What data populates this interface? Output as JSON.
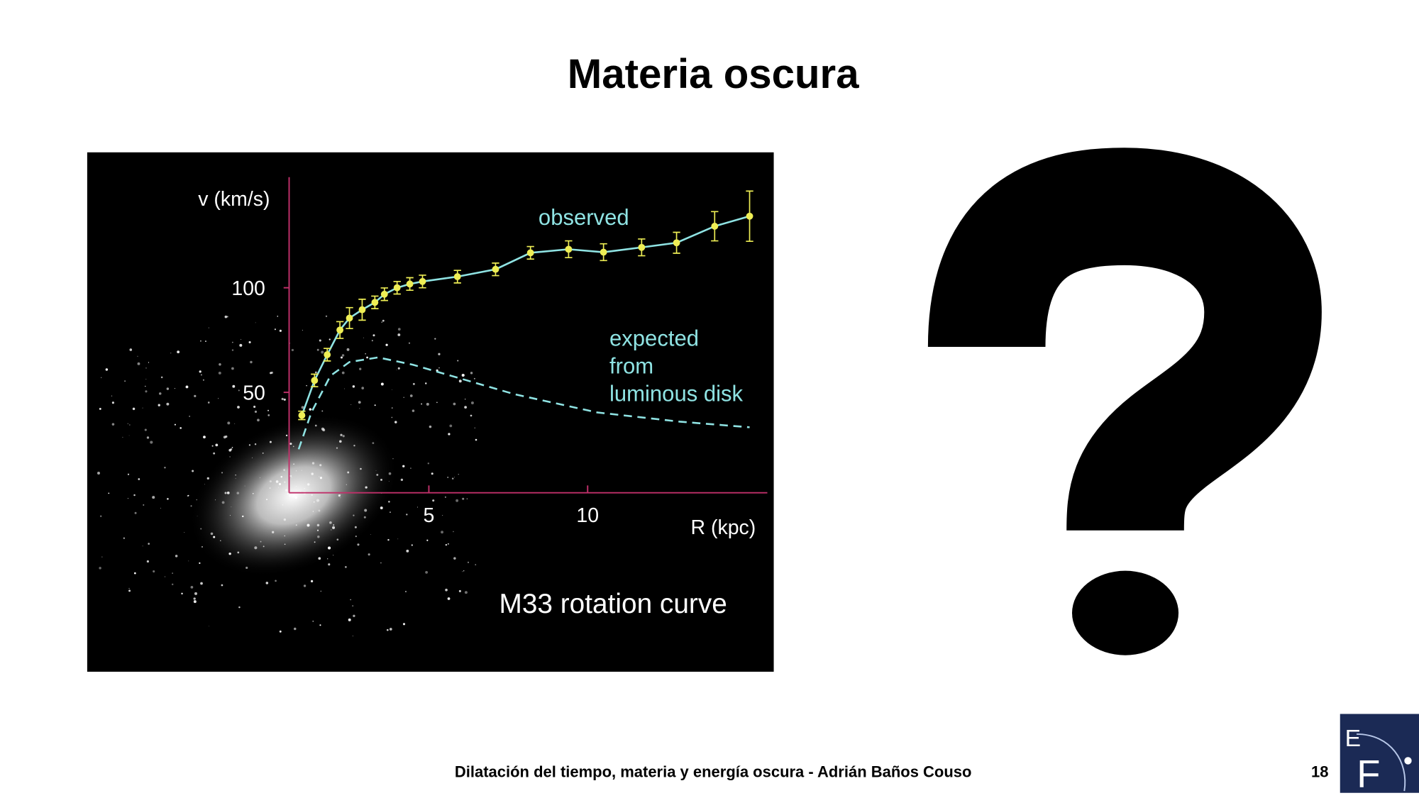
{
  "slide": {
    "title": "Materia oscura",
    "footer": "Dilatación del tiempo, materia y energía oscura - Adrián Baños Couso",
    "page_number": 18,
    "logo": {
      "top": "E",
      "bottom": "F"
    }
  },
  "chart_data": {
    "type": "scatter",
    "title": "M33 rotation curve",
    "x_label": "R (kpc)",
    "y_label": "v (km/s)",
    "xlim": [
      0.6,
      15.6
    ],
    "ylim": [
      2,
      152
    ],
    "xticks": [
      5,
      10
    ],
    "yticks": [
      50,
      100
    ],
    "series": [
      {
        "name": "observed",
        "color": "#8fe3e3",
        "marker_color": "#eeee55",
        "style": "points-and-line",
        "x": [
          1.0,
          1.4,
          1.8,
          2.2,
          2.5,
          2.9,
          3.3,
          3.6,
          4.0,
          4.4,
          4.8,
          5.9,
          7.1,
          8.2,
          9.4,
          10.5,
          11.7,
          12.8,
          14.0,
          15.1
        ],
        "values": [
          39,
          55.7,
          68,
          79.8,
          85.5,
          89.5,
          93,
          96.9,
          100,
          101.8,
          103,
          105.3,
          108.8,
          116.7,
          118.4,
          117,
          119.3,
          121.5,
          129.4,
          134.2
        ],
        "errors": [
          2,
          3,
          3,
          4,
          5,
          5,
          3,
          3,
          3,
          3,
          3,
          3,
          3,
          3,
          4,
          4,
          4,
          5,
          7,
          12
        ]
      },
      {
        "name": "expected\nfrom\nluminous disk",
        "color": "#8fe3e3",
        "style": "dashed",
        "x": [
          0.9,
          1.3,
          1.9,
          2.5,
          3.4,
          4.5,
          6.0,
          7.7,
          10.3,
          12.9,
          15.1
        ],
        "values": [
          22.8,
          40.4,
          57.9,
          64.5,
          66.7,
          63.2,
          56.6,
          49.1,
          40.4,
          36,
          33.3
        ]
      }
    ]
  }
}
